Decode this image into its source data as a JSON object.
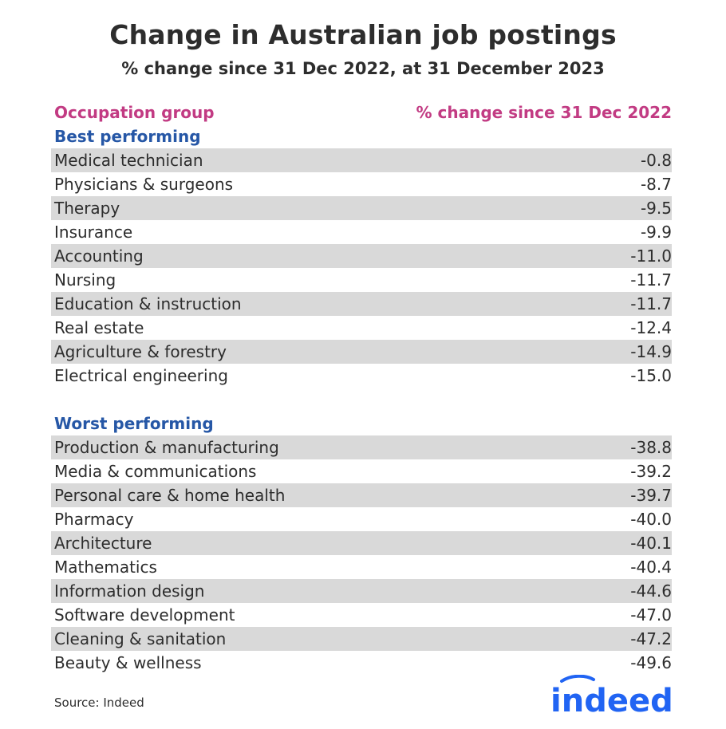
{
  "chart_data": {
    "type": "table",
    "title": "Change in Australian job postings",
    "subtitle": "% change since 31 Dec 2022, at 31 December 2023",
    "columns": [
      "Occupation group",
      "% change since 31 Dec 2022"
    ],
    "groups": [
      {
        "name": "Best performing",
        "rows": [
          {
            "label": "Medical technician",
            "value": "-0.8"
          },
          {
            "label": "Physicians & surgeons",
            "value": "-8.7"
          },
          {
            "label": "Therapy",
            "value": "-9.5"
          },
          {
            "label": "Insurance",
            "value": "-9.9"
          },
          {
            "label": "Accounting",
            "value": "-11.0"
          },
          {
            "label": "Nursing",
            "value": "-11.7"
          },
          {
            "label": "Education & instruction",
            "value": "-11.7"
          },
          {
            "label": "Real estate",
            "value": "-12.4"
          },
          {
            "label": "Agriculture & forestry",
            "value": "-14.9"
          },
          {
            "label": "Electrical engineering",
            "value": "-15.0"
          }
        ]
      },
      {
        "name": "Worst performing",
        "rows": [
          {
            "label": "Production & manufacturing",
            "value": "-38.8"
          },
          {
            "label": "Media & communications",
            "value": "-39.2"
          },
          {
            "label": "Personal care & home health",
            "value": "-39.7"
          },
          {
            "label": "Pharmacy",
            "value": "-40.0"
          },
          {
            "label": "Architecture",
            "value": "-40.1"
          },
          {
            "label": "Mathematics",
            "value": "-40.4"
          },
          {
            "label": "Information design",
            "value": "-44.6"
          },
          {
            "label": "Software development",
            "value": "-47.0"
          },
          {
            "label": "Cleaning & sanitation",
            "value": "-47.2"
          },
          {
            "label": "Beauty & wellness",
            "value": "-49.6"
          }
        ]
      }
    ]
  },
  "source": "Source: Indeed",
  "logo": {
    "text": "indeed",
    "color": "#2164f3"
  },
  "colors": {
    "header": "#c23b83",
    "section": "#2657a6",
    "row_shade": "#d9d9d9"
  }
}
